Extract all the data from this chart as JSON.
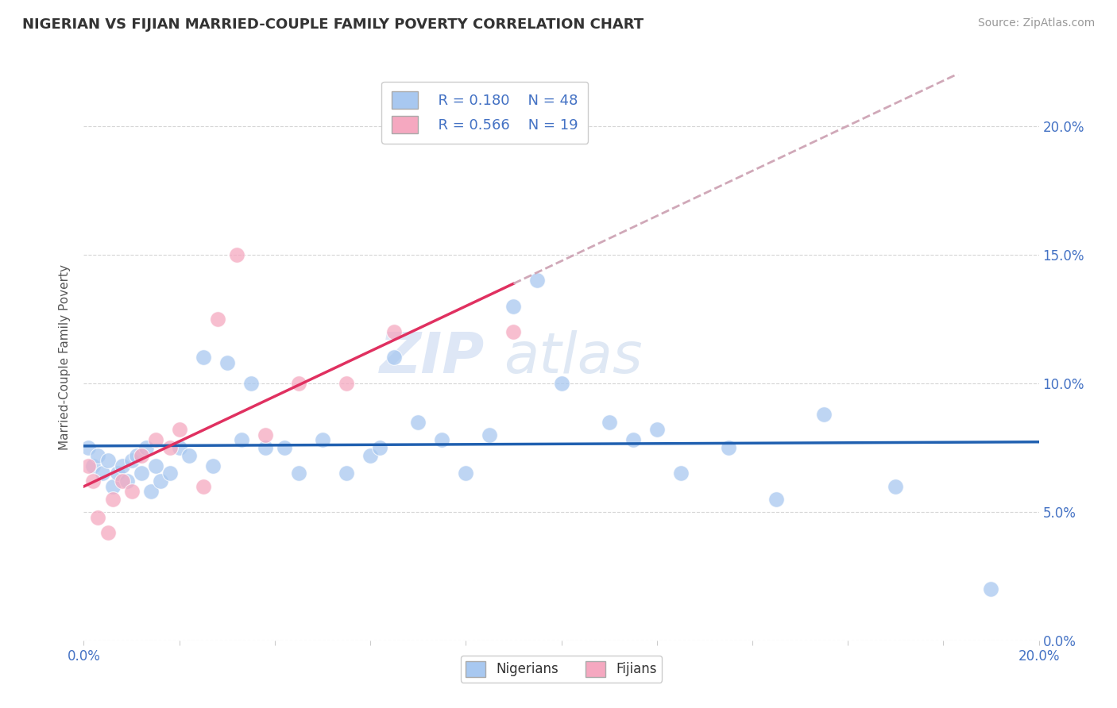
{
  "title": "NIGERIAN VS FIJIAN MARRIED-COUPLE FAMILY POVERTY CORRELATION CHART",
  "source": "Source: ZipAtlas.com",
  "ylabel": "Married-Couple Family Poverty",
  "xlim": [
    0.0,
    0.2
  ],
  "ylim": [
    0.0,
    0.22
  ],
  "legend_R_blue": "0.180",
  "legend_N_blue": "48",
  "legend_R_pink": "0.566",
  "legend_N_pink": "19",
  "blue_color": "#A8C8F0",
  "pink_color": "#F5A8C0",
  "blue_line_color": "#2060B0",
  "pink_line_color": "#E03060",
  "dashed_line_color": "#D0A8B8",
  "watermark_zip": "ZIP",
  "watermark_atlas": "atlas",
  "nigerian_x": [
    0.001,
    0.002,
    0.003,
    0.004,
    0.005,
    0.006,
    0.007,
    0.008,
    0.009,
    0.01,
    0.011,
    0.012,
    0.013,
    0.014,
    0.015,
    0.016,
    0.018,
    0.02,
    0.022,
    0.025,
    0.027,
    0.03,
    0.033,
    0.035,
    0.038,
    0.042,
    0.045,
    0.05,
    0.055,
    0.06,
    0.062,
    0.065,
    0.07,
    0.075,
    0.08,
    0.085,
    0.09,
    0.095,
    0.1,
    0.11,
    0.115,
    0.12,
    0.125,
    0.135,
    0.145,
    0.155,
    0.17,
    0.19
  ],
  "nigerian_y": [
    0.075,
    0.068,
    0.072,
    0.065,
    0.07,
    0.06,
    0.065,
    0.068,
    0.062,
    0.07,
    0.072,
    0.065,
    0.075,
    0.058,
    0.068,
    0.062,
    0.065,
    0.075,
    0.072,
    0.11,
    0.068,
    0.108,
    0.078,
    0.1,
    0.075,
    0.075,
    0.065,
    0.078,
    0.065,
    0.072,
    0.075,
    0.11,
    0.085,
    0.078,
    0.065,
    0.08,
    0.13,
    0.14,
    0.1,
    0.085,
    0.078,
    0.082,
    0.065,
    0.075,
    0.055,
    0.088,
    0.06,
    0.02
  ],
  "fijian_x": [
    0.001,
    0.002,
    0.003,
    0.005,
    0.006,
    0.008,
    0.01,
    0.012,
    0.015,
    0.018,
    0.02,
    0.025,
    0.028,
    0.032,
    0.038,
    0.045,
    0.055,
    0.065,
    0.09
  ],
  "fijian_y": [
    0.068,
    0.062,
    0.048,
    0.042,
    0.055,
    0.062,
    0.058,
    0.072,
    0.078,
    0.075,
    0.082,
    0.06,
    0.125,
    0.15,
    0.08,
    0.1,
    0.1,
    0.12,
    0.12
  ]
}
